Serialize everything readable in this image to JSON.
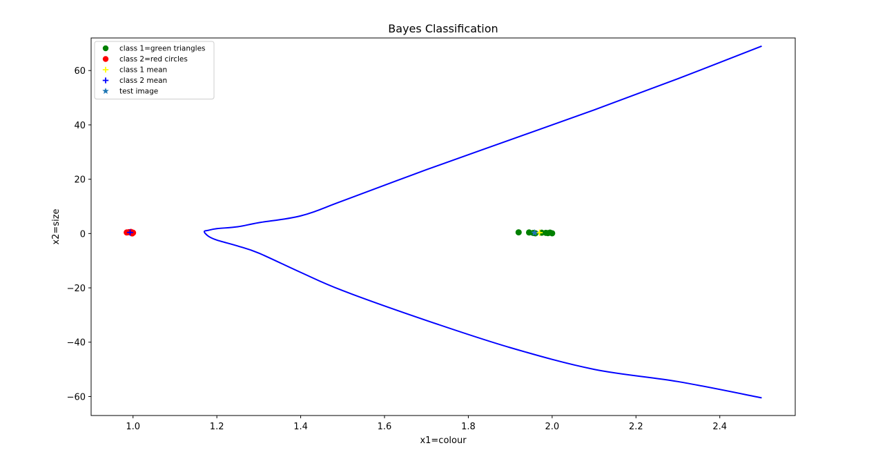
{
  "chart_data": {
    "type": "scatter",
    "title": "Bayes Classification",
    "xlabel": "x1=colour",
    "ylabel": "x2=size",
    "xlim": [
      0.9,
      2.58
    ],
    "ylim": [
      -67,
      72
    ],
    "xticks": [
      1.0,
      1.2,
      1.4,
      1.6,
      1.8,
      2.0,
      2.2,
      2.4
    ],
    "xtick_labels": [
      "1.0",
      "1.2",
      "1.4",
      "1.6",
      "1.8",
      "2.0",
      "2.2",
      "2.4"
    ],
    "yticks": [
      60,
      40,
      20,
      0,
      -20,
      -40,
      -60
    ],
    "ytick_labels": [
      "60",
      "40",
      "20",
      "0",
      "−20",
      "−40",
      "−60"
    ],
    "grid": false,
    "legend_position": "upper-left",
    "series": [
      {
        "name": "class 1=green triangles",
        "marker": "circle",
        "color": "#008000",
        "points": [
          [
            1.92,
            0.45
          ],
          [
            1.945,
            0.4
          ],
          [
            1.955,
            0.2
          ],
          [
            1.96,
            0.1
          ],
          [
            1.975,
            0.3
          ],
          [
            1.985,
            0.25
          ],
          [
            1.99,
            0.15
          ],
          [
            1.995,
            0.35
          ],
          [
            2.0,
            0.1
          ]
        ]
      },
      {
        "name": "class 2=red circles",
        "marker": "circle",
        "color": "#ff0000",
        "points": [
          [
            0.985,
            0.4
          ],
          [
            0.99,
            0.5
          ],
          [
            0.995,
            0.6
          ],
          [
            1.0,
            0.3
          ],
          [
            0.998,
            0.05
          ]
        ]
      },
      {
        "name": "class 1 mean",
        "marker": "plus",
        "color": "#ffff00",
        "points": [
          [
            1.97,
            0.3
          ]
        ]
      },
      {
        "name": "class 2 mean",
        "marker": "plus",
        "color": "#0000ff",
        "points": [
          [
            0.993,
            0.4
          ]
        ]
      },
      {
        "name": "test image",
        "marker": "star",
        "color": "#1f77b4",
        "points": [
          [
            1.958,
            0.25
          ]
        ]
      }
    ],
    "decision_boundary": {
      "color": "#0000ff",
      "upper": {
        "x": [
          2.5,
          2.3,
          2.1,
          1.9,
          1.7,
          1.5,
          1.4,
          1.3,
          1.25,
          1.2,
          1.18,
          1.17
        ],
        "y": [
          69.0,
          57.0,
          45.5,
          34.5,
          23.5,
          12.0,
          6.5,
          4.0,
          2.5,
          1.8,
          1.2,
          0.7
        ]
      },
      "lower": {
        "x": [
          1.17,
          1.18,
          1.2,
          1.25,
          1.3,
          1.4,
          1.5,
          1.7,
          1.9,
          2.1,
          2.3,
          2.5
        ],
        "y": [
          0.7,
          -1.0,
          -2.4,
          -4.6,
          -7.2,
          -14.3,
          -21.0,
          -32.0,
          -42.0,
          -50.0,
          -54.5,
          -60.5
        ]
      }
    }
  }
}
